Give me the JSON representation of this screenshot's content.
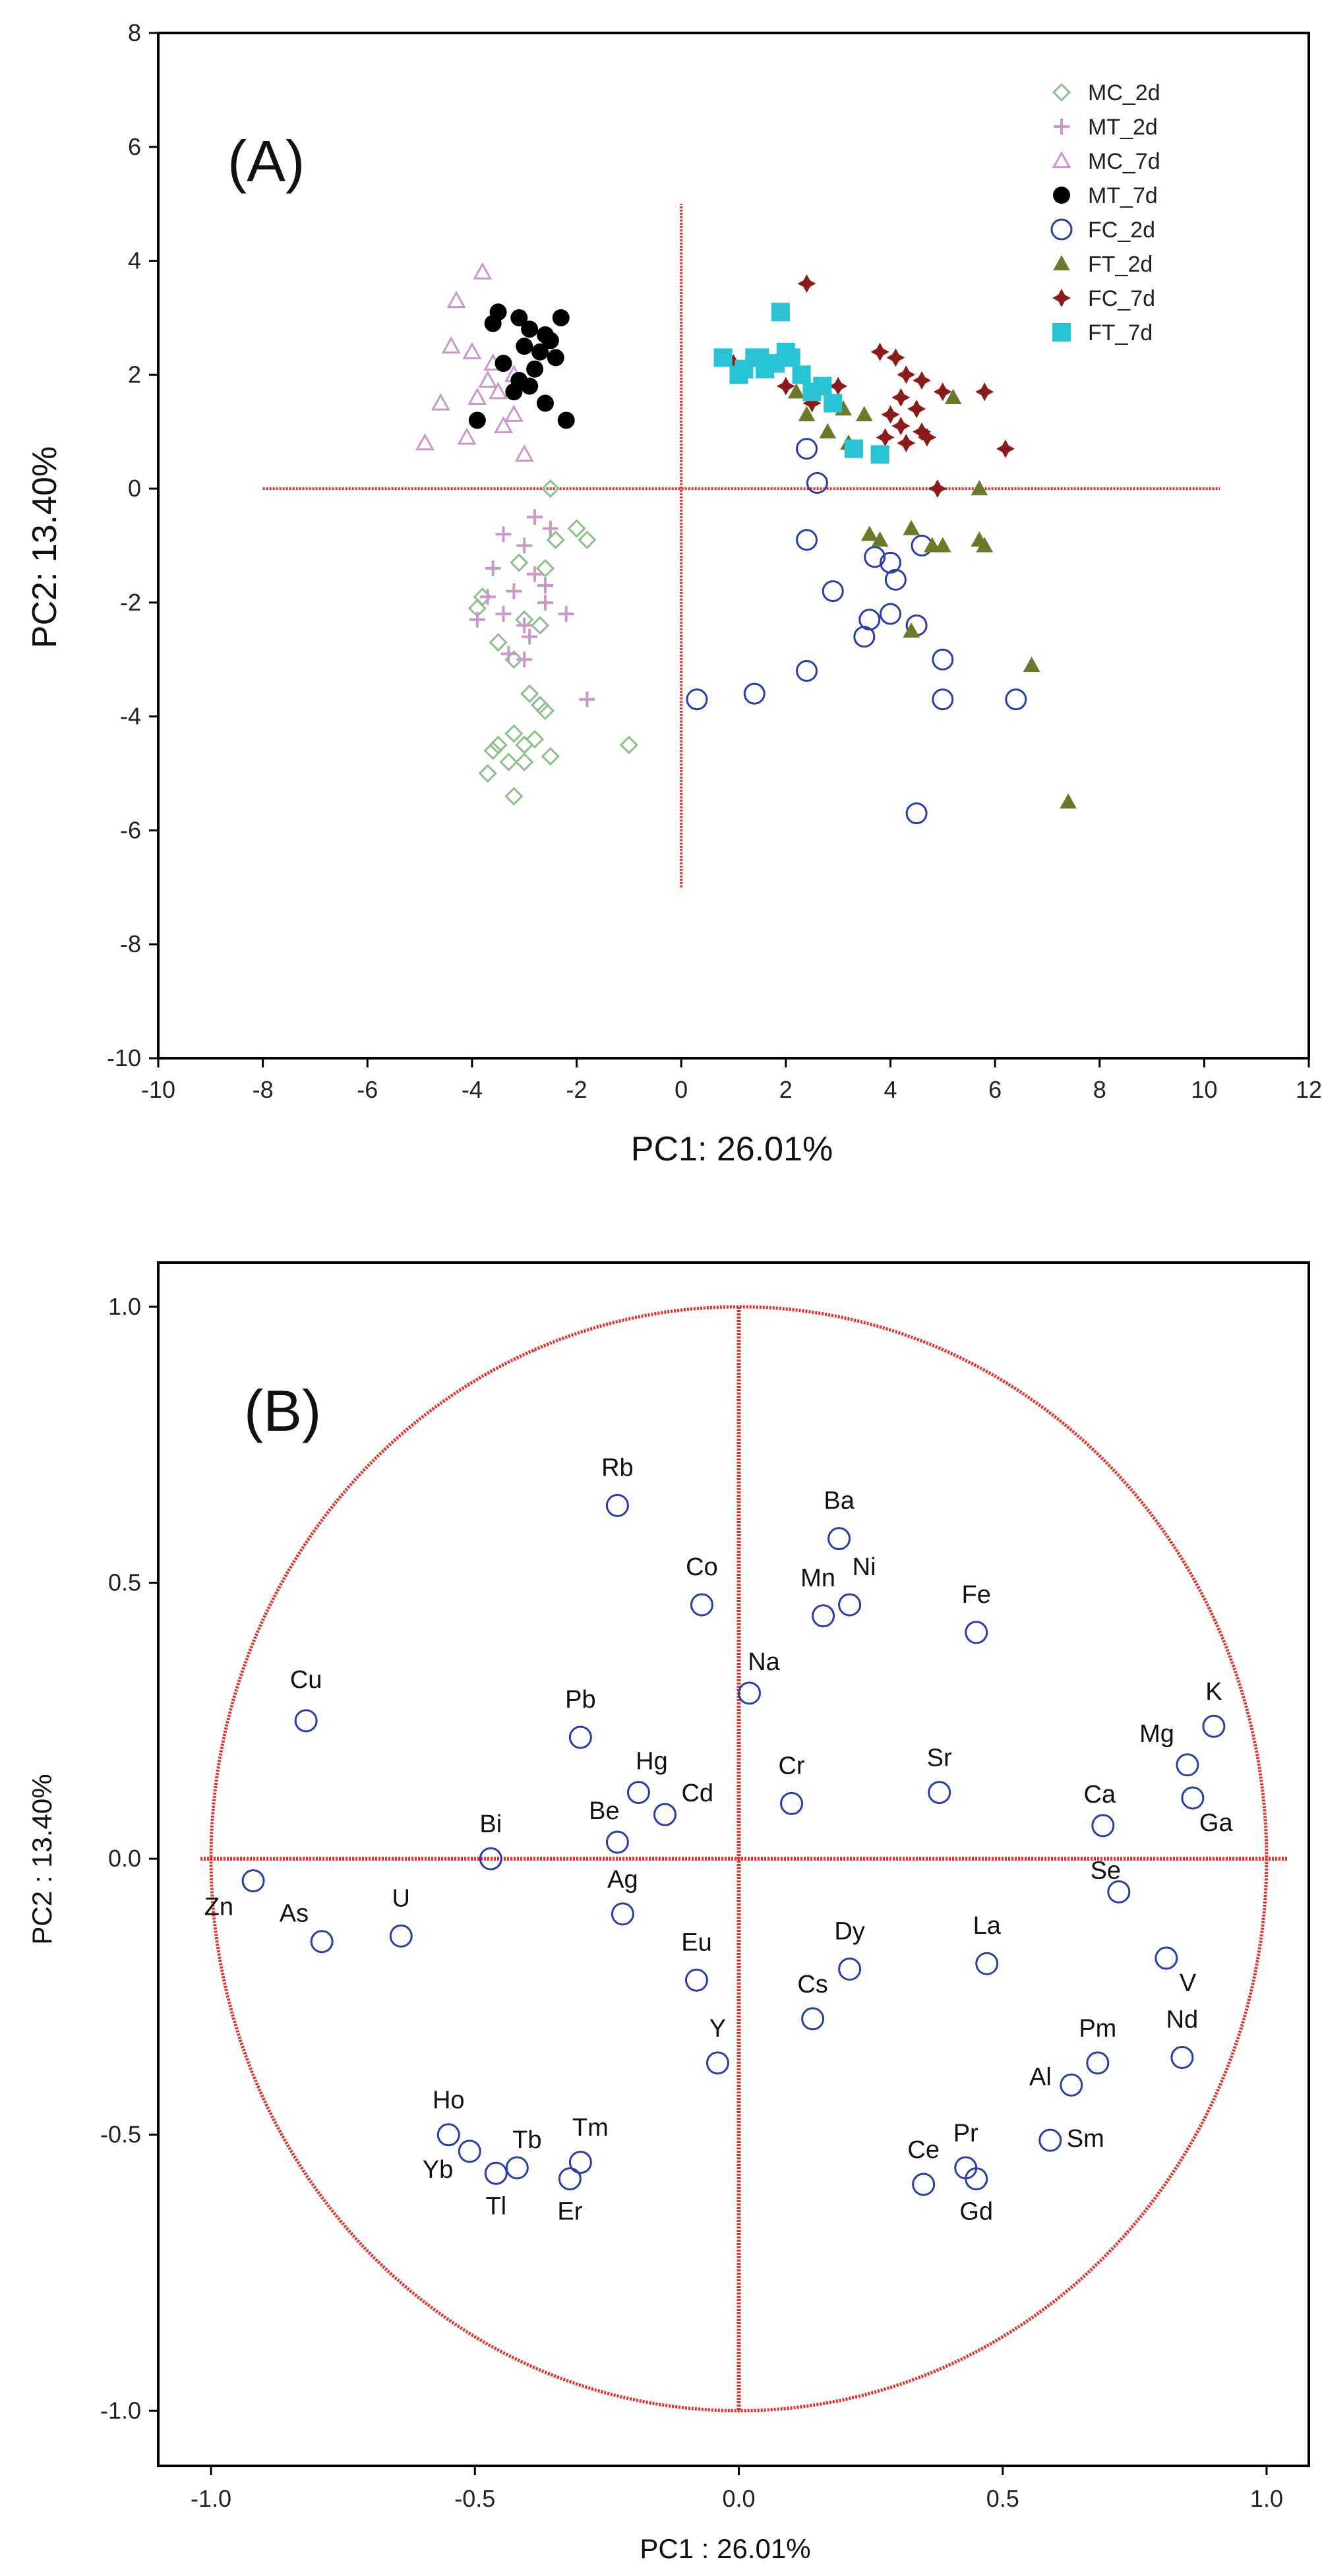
{
  "colors": {
    "axis": "#000000",
    "refline": "#e8302a",
    "circle": "#e8302a",
    "marker_blue": "#2b3ea8"
  },
  "chart_data": [
    {
      "type": "scatter",
      "panel": "(A)",
      "xlabel": "PC1: 26.01%",
      "ylabel": "PC2: 13.40%",
      "xlim": [
        -10,
        12
      ],
      "ylim": [
        -10,
        8
      ],
      "xticks": [
        -10,
        -8,
        -6,
        -4,
        -2,
        0,
        2,
        4,
        6,
        8,
        10,
        12
      ],
      "yticks": [
        -10,
        -8,
        -6,
        -4,
        -2,
        0,
        2,
        4,
        6,
        8
      ],
      "grid": false,
      "legend_position": "top-right",
      "reference_lines": {
        "h": {
          "y": 0,
          "x_from": -8,
          "x_to": 10.3
        },
        "v": {
          "x": 0,
          "y_from": -7,
          "y_to": 5
        }
      },
      "series": [
        {
          "name": "MC_2d",
          "marker": "diamond-open",
          "color": "#8fbf8f",
          "x": [
            -2.5,
            -2.0,
            -1.8,
            -2.4,
            -3.1,
            -2.6,
            -3.0,
            -2.7,
            -3.8,
            -3.9,
            -3.5,
            -3.2,
            -2.9,
            -2.7,
            -2.6,
            -3.2,
            -2.8,
            -3.0,
            -3.5,
            -3.6,
            -3.3,
            -3.0,
            -2.5,
            -1.0,
            -3.7,
            -3.2
          ],
          "y": [
            0,
            -0.7,
            -0.9,
            -0.9,
            -1.3,
            -1.4,
            -2.3,
            -2.4,
            -1.9,
            -2.1,
            -2.7,
            -3.0,
            -3.6,
            -3.8,
            -3.9,
            -4.3,
            -4.4,
            -4.5,
            -4.5,
            -4.6,
            -4.8,
            -4.8,
            -4.7,
            -4.5,
            -5.0,
            -5.4
          ]
        },
        {
          "name": "MT_2d",
          "marker": "plus",
          "color": "#c99ac9",
          "x": [
            -2.8,
            -3.4,
            -3.0,
            -2.5,
            -3.6,
            -2.6,
            -3.2,
            -2.8,
            -3.7,
            -2.6,
            -2.2,
            -3.0,
            -3.4,
            -2.9,
            -3.3,
            -1.8,
            -3.0,
            -3.9
          ],
          "y": [
            -0.5,
            -0.8,
            -1.0,
            -0.7,
            -1.4,
            -1.7,
            -1.8,
            -1.5,
            -1.9,
            -2.0,
            -2.2,
            -2.4,
            -2.2,
            -2.6,
            -2.9,
            -3.7,
            -3.0,
            -2.3
          ]
        },
        {
          "name": "MC_7d",
          "marker": "triangle-open",
          "color": "#c99ac9",
          "x": [
            -3.8,
            -4.3,
            -4.0,
            -4.4,
            -3.6,
            -3.2,
            -3.5,
            -3.9,
            -4.6,
            -3.2,
            -4.9,
            -3.0,
            -4.1,
            -3.4,
            -3.7
          ],
          "y": [
            3.8,
            3.3,
            2.4,
            2.5,
            2.2,
            2.0,
            1.7,
            1.6,
            1.5,
            1.3,
            0.8,
            0.6,
            0.9,
            1.1,
            1.9
          ]
        },
        {
          "name": "MT_7d",
          "marker": "circle-filled",
          "color": "#000000",
          "x": [
            -3.5,
            -3.1,
            -2.9,
            -2.6,
            -2.3,
            -3.0,
            -2.7,
            -2.5,
            -3.4,
            -2.8,
            -3.6,
            -2.9,
            -3.2,
            -2.6,
            -2.2,
            -3.9,
            -2.4,
            -3.1
          ],
          "y": [
            3.1,
            3.0,
            2.8,
            2.7,
            3.0,
            2.5,
            2.4,
            2.6,
            2.2,
            2.1,
            2.9,
            1.8,
            1.7,
            1.5,
            1.2,
            1.2,
            2.3,
            1.9
          ]
        },
        {
          "name": "FC_2d",
          "marker": "circle-open",
          "color": "#2b3ea8",
          "x": [
            2.4,
            2.6,
            2.4,
            3.7,
            4.1,
            4.6,
            2.9,
            3.6,
            4.0,
            3.5,
            4.5,
            2.4,
            0.3,
            1.4,
            5.0,
            5.0,
            6.4,
            4.5,
            4.0
          ],
          "y": [
            0.7,
            0.1,
            -0.9,
            -1.2,
            -1.6,
            -1.0,
            -1.8,
            -2.3,
            -2.2,
            -2.6,
            -2.4,
            -3.2,
            -3.7,
            -3.6,
            -3.0,
            -3.7,
            -3.7,
            -5.7,
            -1.3
          ]
        },
        {
          "name": "FT_2d",
          "marker": "triangle-filled",
          "color": "#6b7a2a",
          "x": [
            2.2,
            2.4,
            2.8,
            3.5,
            3.2,
            5.2,
            5.7,
            3.8,
            4.4,
            4.8,
            3.6,
            5.0,
            5.7,
            5.8,
            4.4,
            6.7,
            7.4,
            3.1
          ],
          "y": [
            1.7,
            1.3,
            1.0,
            1.3,
            0.8,
            1.6,
            0.0,
            -0.9,
            -0.7,
            -1.0,
            -0.8,
            -1.0,
            -0.9,
            -1.0,
            -2.5,
            -3.1,
            -5.5,
            1.4
          ]
        },
        {
          "name": "FC_7d",
          "marker": "star-filled",
          "color": "#8b1a1a",
          "x": [
            2.4,
            1.0,
            2.0,
            2.5,
            3.0,
            3.8,
            4.1,
            4.3,
            4.6,
            4.2,
            4.5,
            4.0,
            4.2,
            4.6,
            4.3,
            3.9,
            5.0,
            5.8,
            6.2,
            4.7,
            4.9
          ],
          "y": [
            3.6,
            2.2,
            1.8,
            1.5,
            1.8,
            2.4,
            2.3,
            2.0,
            1.9,
            1.6,
            1.4,
            1.3,
            1.1,
            1.0,
            0.8,
            0.9,
            1.7,
            1.7,
            0.7,
            0.9,
            0.0
          ]
        },
        {
          "name": "FT_7d",
          "marker": "square-filled",
          "color": "#29c3d6",
          "x": [
            0.8,
            1.2,
            1.5,
            1.8,
            2.1,
            1.9,
            2.3,
            2.5,
            1.6,
            1.4,
            2.7,
            2.9,
            2.0,
            3.3,
            3.8,
            1.1
          ],
          "y": [
            2.3,
            2.1,
            2.3,
            2.2,
            2.3,
            3.1,
            2.0,
            1.7,
            2.1,
            2.3,
            1.8,
            1.5,
            2.4,
            0.7,
            0.6,
            2.0
          ]
        }
      ]
    },
    {
      "type": "scatter",
      "panel": "(B)",
      "xlabel": "PC1 : 26.01%",
      "ylabel": "PC2 : 13.40%",
      "xlim": [
        -1.1,
        1.08
      ],
      "ylim": [
        -1.1,
        1.08
      ],
      "xticks": [
        -1.0,
        -0.5,
        0.0,
        0.5,
        1.0
      ],
      "yticks": [
        -1.0,
        -0.5,
        0.0,
        0.5,
        1.0
      ],
      "xtick_labels": [
        "-1.0",
        "-0.5",
        "0.0",
        "0.5",
        "1.0"
      ],
      "ytick_labels": [
        "-1.0",
        "-0.5",
        "0.0",
        "0.5",
        "1.0"
      ],
      "grid": false,
      "unit_circle": true,
      "points": [
        {
          "label": "Rb",
          "x": -0.23,
          "y": 0.64
        },
        {
          "label": "Ba",
          "x": 0.19,
          "y": 0.58
        },
        {
          "label": "Co",
          "x": -0.07,
          "y": 0.46
        },
        {
          "label": "Mn",
          "x": 0.16,
          "y": 0.44
        },
        {
          "label": "Ni",
          "x": 0.21,
          "y": 0.46
        },
        {
          "label": "Fe",
          "x": 0.45,
          "y": 0.41
        },
        {
          "label": "Na",
          "x": 0.02,
          "y": 0.3
        },
        {
          "label": "Cu",
          "x": -0.82,
          "y": 0.25
        },
        {
          "label": "Pb",
          "x": -0.3,
          "y": 0.22
        },
        {
          "label": "Hg",
          "x": -0.19,
          "y": 0.12
        },
        {
          "label": "Cd",
          "x": -0.14,
          "y": 0.08
        },
        {
          "label": "Be",
          "x": -0.23,
          "y": 0.03
        },
        {
          "label": "Cr",
          "x": 0.1,
          "y": 0.1
        },
        {
          "label": "Sr",
          "x": 0.38,
          "y": 0.12
        },
        {
          "label": "Mg",
          "x": 0.85,
          "y": 0.17
        },
        {
          "label": "K",
          "x": 0.9,
          "y": 0.24
        },
        {
          "label": "Ga",
          "x": 0.86,
          "y": 0.11
        },
        {
          "label": "Ca",
          "x": 0.69,
          "y": 0.06
        },
        {
          "label": "Se",
          "x": 0.72,
          "y": -0.06
        },
        {
          "label": "Bi",
          "x": -0.47,
          "y": 0.0
        },
        {
          "label": "Zn",
          "x": -0.92,
          "y": -0.04
        },
        {
          "label": "As",
          "x": -0.79,
          "y": -0.15
        },
        {
          "label": "U",
          "x": -0.64,
          "y": -0.14
        },
        {
          "label": "Ag",
          "x": -0.22,
          "y": -0.1
        },
        {
          "label": "Eu",
          "x": -0.08,
          "y": -0.22
        },
        {
          "label": "Dy",
          "x": 0.21,
          "y": -0.2
        },
        {
          "label": "Cs",
          "x": 0.14,
          "y": -0.29
        },
        {
          "label": "La",
          "x": 0.47,
          "y": -0.19
        },
        {
          "label": "V",
          "x": 0.81,
          "y": -0.18
        },
        {
          "label": "Y",
          "x": -0.04,
          "y": -0.37
        },
        {
          "label": "Pm",
          "x": 0.68,
          "y": -0.37
        },
        {
          "label": "Nd",
          "x": 0.84,
          "y": -0.36
        },
        {
          "label": "Al",
          "x": 0.63,
          "y": -0.41
        },
        {
          "label": "Sm",
          "x": 0.59,
          "y": -0.51
        },
        {
          "label": "Ho",
          "x": -0.55,
          "y": -0.5
        },
        {
          "label": "Yb",
          "x": -0.51,
          "y": -0.53
        },
        {
          "label": "Tb",
          "x": -0.42,
          "y": -0.56
        },
        {
          "label": "Tl",
          "x": -0.46,
          "y": -0.57
        },
        {
          "label": "Tm",
          "x": -0.3,
          "y": -0.55
        },
        {
          "label": "Er",
          "x": -0.32,
          "y": -0.58
        },
        {
          "label": "Ce",
          "x": 0.35,
          "y": -0.59
        },
        {
          "label": "Pr",
          "x": 0.43,
          "y": -0.56
        },
        {
          "label": "Gd",
          "x": 0.45,
          "y": -0.58
        }
      ]
    }
  ]
}
